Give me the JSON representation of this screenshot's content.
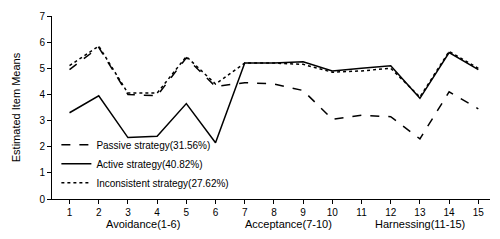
{
  "chart_data": {
    "type": "line",
    "y_label": "Estimated Item Means",
    "x": [
      1,
      2,
      3,
      4,
      5,
      6,
      7,
      8,
      9,
      10,
      11,
      12,
      13,
      14,
      15
    ],
    "series": [
      {
        "name": "Passive strategy(31.56%)",
        "color": "#000000",
        "line_style": "dash",
        "values": [
          4.95,
          5.8,
          4.0,
          3.95,
          5.4,
          4.3,
          4.45,
          4.4,
          4.15,
          3.05,
          3.2,
          3.15,
          2.3,
          4.1,
          3.45
        ]
      },
      {
        "name": "Active strategy(40.82%)",
        "color": "#000000",
        "line_style": "solid",
        "values": [
          3.3,
          3.95,
          2.35,
          2.4,
          3.65,
          2.15,
          5.2,
          5.2,
          5.25,
          4.9,
          5.0,
          5.1,
          3.85,
          5.6,
          4.95
        ]
      },
      {
        "name": "Inconsistent strategy(27.62%)",
        "color": "#000000",
        "line_style": "dot",
        "values": [
          5.1,
          5.85,
          4.05,
          4.05,
          5.45,
          4.4,
          5.2,
          5.2,
          5.15,
          4.85,
          4.9,
          5.0,
          3.9,
          5.65,
          5.0
        ]
      }
    ],
    "annotations": [
      {
        "text": "Avoidance(1-6)",
        "x_range": [
          1,
          6
        ]
      },
      {
        "text": "Acceptance(7-10)",
        "x_range": [
          7,
          10
        ]
      },
      {
        "text": "Harnessing(11-15)",
        "x_range": [
          11,
          15
        ]
      }
    ],
    "xlim": [
      0.4,
      15.4
    ],
    "xticks": [
      1,
      2,
      3,
      4,
      5,
      6,
      7,
      8,
      9,
      10,
      11,
      12,
      13,
      14,
      15
    ],
    "ylim": [
      0,
      7
    ],
    "yticks": [
      0,
      1,
      2,
      3,
      4,
      5,
      6,
      7
    ],
    "grid": false,
    "legend": "lower left"
  }
}
